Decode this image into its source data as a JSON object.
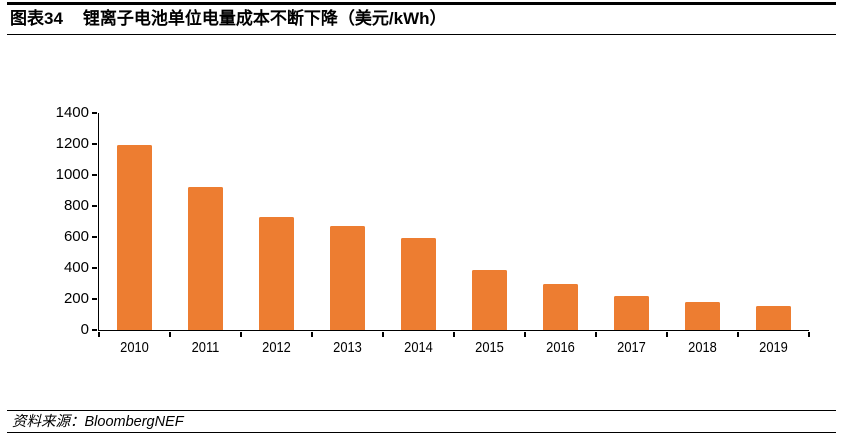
{
  "figure": {
    "label": "图表34",
    "title": "锂离子电池单位电量成本不断下降（美元/kWh）"
  },
  "source": {
    "prefix": "资料来源：",
    "name": "BloombergNEF"
  },
  "chart_data": {
    "type": "bar",
    "title": "锂离子电池单位电量成本不断下降（美元/kWh）",
    "categories": [
      "2010",
      "2011",
      "2012",
      "2013",
      "2014",
      "2015",
      "2016",
      "2017",
      "2018",
      "2019"
    ],
    "values": [
      1191,
      924,
      726,
      668,
      592,
      384,
      295,
      221,
      181,
      157
    ],
    "xlabel": "",
    "ylabel": "美元/kWh",
    "ylim": [
      0,
      1400
    ],
    "ytick_step": 200,
    "yticks": [
      0,
      200,
      400,
      600,
      800,
      1000,
      1200,
      1400
    ],
    "grid": false,
    "legend": null,
    "bar_color": "#ED7D31",
    "axis_color": "#000000",
    "bar_width_fraction": 0.48
  }
}
